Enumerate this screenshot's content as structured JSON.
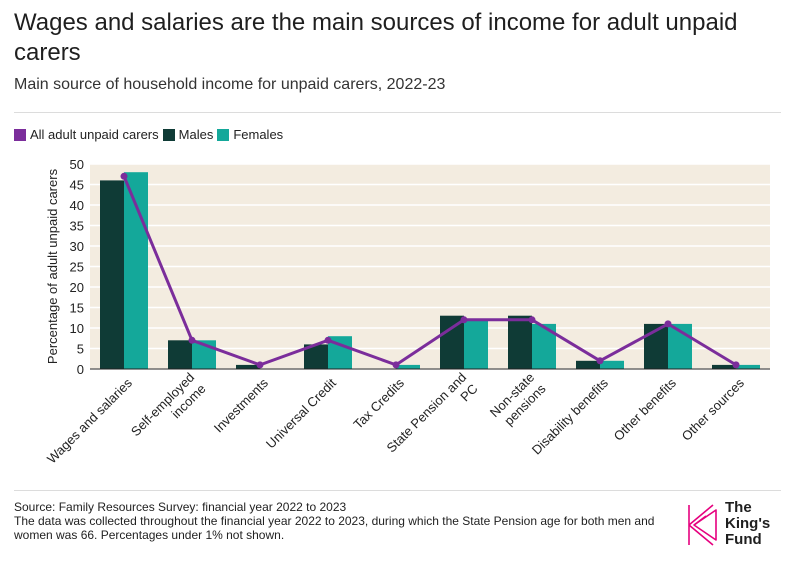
{
  "header": {
    "title": "Wages and salaries are the main sources of income for adult unpaid carers",
    "subtitle": "Main source of household income for unpaid carers, 2022-23"
  },
  "legend": {
    "items": [
      {
        "label": "All adult unpaid carers",
        "color": "#7b2d9b"
      },
      {
        "label": "Males",
        "color": "#0f3b36"
      },
      {
        "label": "Females",
        "color": "#14a89a"
      }
    ]
  },
  "chart_data": {
    "type": "bar",
    "title": "Wages and salaries are the main sources of income for adult unpaid carers",
    "subtitle": "Main source of household income for unpaid carers, 2022-23",
    "ylabel": "Percentage of adult unpaid carers",
    "ylim": [
      0,
      50
    ],
    "yticks": [
      0,
      5,
      10,
      15,
      20,
      25,
      30,
      35,
      40,
      45,
      50
    ],
    "grid": true,
    "categories": [
      [
        "Wages and salaries"
      ],
      [
        "Self-employed",
        "income"
      ],
      [
        "Investments"
      ],
      [
        "Universal Credit"
      ],
      [
        "Tax Credits"
      ],
      [
        "State Pension and",
        "PC"
      ],
      [
        "Non-state",
        "pensions"
      ],
      [
        "Disability benefits"
      ],
      [
        "Other benefits"
      ],
      [
        "Other sources"
      ]
    ],
    "series": [
      {
        "name": "Males",
        "kind": "bar",
        "color": "#0f3b36",
        "values": [
          46,
          7,
          1,
          6,
          null,
          13,
          13,
          2,
          11,
          1
        ]
      },
      {
        "name": "Females",
        "kind": "bar",
        "color": "#14a89a",
        "values": [
          48,
          7,
          null,
          8,
          1,
          12,
          11,
          2,
          11,
          1
        ]
      },
      {
        "name": "All adult unpaid carers",
        "kind": "line",
        "color": "#7b2d9b",
        "values": [
          47,
          7,
          1,
          7,
          1,
          12,
          12,
          2,
          11,
          1
        ]
      }
    ]
  },
  "footer": {
    "source": "Source: Family Resources Survey: financial year 2022 to 2023",
    "note": "The data was collected throughout the financial year 2022 to 2023, during which the State Pension age for both men and women was 66. Percentages under 1% not shown."
  },
  "logo": {
    "lines": [
      "The",
      "King's",
      "Fund"
    ],
    "color": "#e6007e"
  }
}
